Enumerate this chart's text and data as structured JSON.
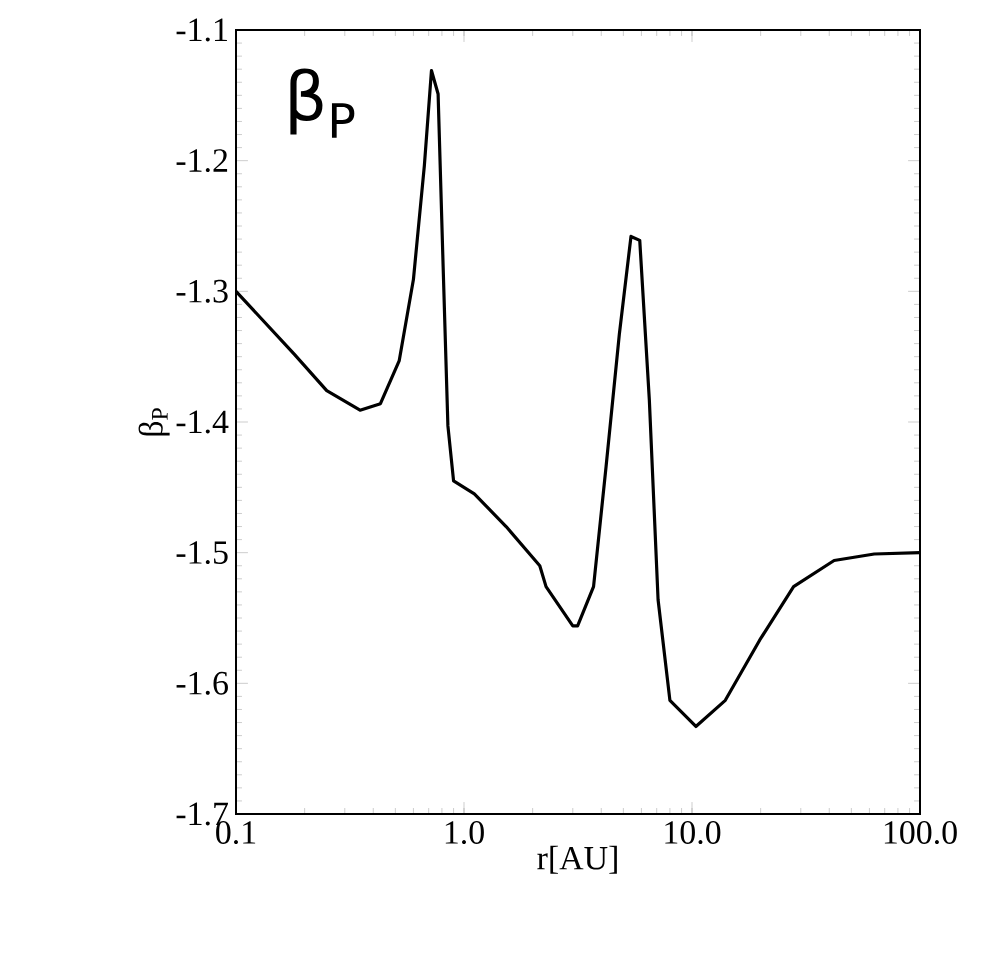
{
  "chart_data": {
    "type": "line",
    "xlabel": "r[AU]",
    "ylabel": "β$_{P}$",
    "annotations": [
      "β$_{P}$"
    ],
    "log": "x",
    "xlim": [
      0.1,
      100
    ],
    "ylim": [
      -1.7,
      -1.1
    ],
    "xticks": [
      0.1,
      {
        "value": 1,
        "label": "1.0"
      },
      {
        "value": 10,
        "label": "10.0"
      },
      {
        "value": 100,
        "label": "100.0"
      }
    ],
    "yticks": [
      -1.7,
      -1.6,
      -1.5,
      -1.4,
      -1.3,
      -1.2,
      -1.1
    ],
    "series": [
      {
        "color": "#000000",
        "line_style": "solid",
        "x": [
          0.1,
          0.18,
          0.25,
          0.35,
          0.43,
          0.52,
          0.6,
          0.67,
          0.72,
          0.77,
          0.81,
          0.85,
          0.9,
          1.11,
          1.53,
          2.15,
          2.29,
          3.0,
          3.15,
          3.7,
          4.2,
          4.8,
          5.4,
          5.9,
          6.5,
          7.1,
          8.0,
          10.4,
          14.0,
          19.8,
          27.9,
          42,
          63,
          100
        ],
        "values": [
          -1.3,
          -1.348,
          -1.376,
          -1.391,
          -1.386,
          -1.353,
          -1.291,
          -1.204,
          -1.131,
          -1.149,
          -1.281,
          -1.403,
          -1.445,
          -1.455,
          -1.48,
          -1.51,
          -1.526,
          -1.556,
          -1.556,
          -1.526,
          -1.434,
          -1.333,
          -1.258,
          -1.261,
          -1.383,
          -1.536,
          -1.613,
          -1.633,
          -1.613,
          -1.567,
          -1.526,
          -1.506,
          -1.501,
          -1.5
        ]
      }
    ]
  }
}
